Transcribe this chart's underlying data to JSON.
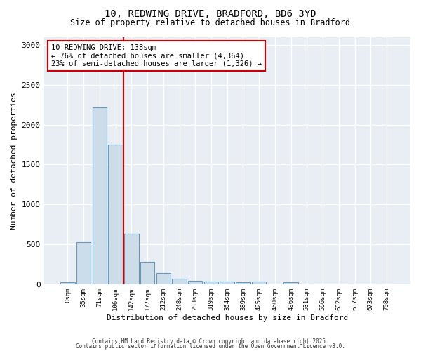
{
  "title1": "10, REDWING DRIVE, BRADFORD, BD6 3YD",
  "title2": "Size of property relative to detached houses in Bradford",
  "xlabel": "Distribution of detached houses by size in Bradford",
  "ylabel": "Number of detached properties",
  "bar_labels": [
    "0sqm",
    "35sqm",
    "71sqm",
    "106sqm",
    "142sqm",
    "177sqm",
    "212sqm",
    "248sqm",
    "283sqm",
    "319sqm",
    "354sqm",
    "389sqm",
    "425sqm",
    "460sqm",
    "496sqm",
    "531sqm",
    "566sqm",
    "602sqm",
    "637sqm",
    "673sqm",
    "708sqm"
  ],
  "bar_values": [
    28,
    525,
    2220,
    1750,
    635,
    280,
    140,
    70,
    45,
    35,
    30,
    25,
    30,
    0,
    25,
    0,
    0,
    0,
    0,
    0,
    0
  ],
  "bar_color": "#ccdce8",
  "bar_edge_color": "#6699bb",
  "red_line_index": 4,
  "annotation_text": "10 REDWING DRIVE: 138sqm\n← 76% of detached houses are smaller (4,364)\n23% of semi-detached houses are larger (1,326) →",
  "annotation_box_color": "white",
  "annotation_box_edge_color": "#cc0000",
  "red_line_color": "#cc0000",
  "ylim": [
    0,
    3100
  ],
  "yticks": [
    0,
    500,
    1000,
    1500,
    2000,
    2500,
    3000
  ],
  "footer1": "Contains HM Land Registry data © Crown copyright and database right 2025.",
  "footer2": "Contains public sector information licensed under the Open Government Licence v3.0.",
  "bg_color": "#ffffff",
  "plot_bg_color": "#e8eef4"
}
